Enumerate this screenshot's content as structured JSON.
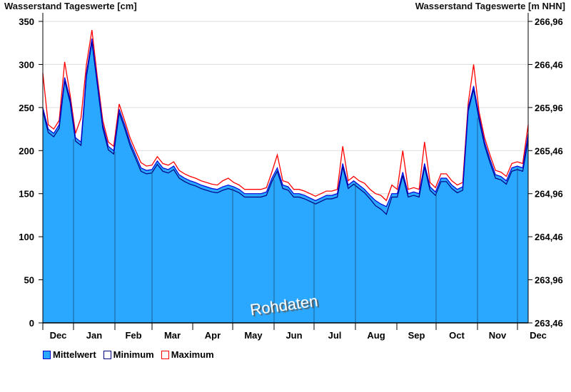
{
  "chart_data": {
    "type": "area",
    "title_left": "Wasserstand Tageswerte [cm]",
    "title_right": "Wasserstand Tageswerte [m NHN]",
    "watermark": "Rohdaten",
    "ylim": [
      0,
      350
    ],
    "yticks": [
      "0",
      "50",
      "100",
      "150",
      "200",
      "250",
      "300",
      "350"
    ],
    "yticks_right": [
      "263,46",
      "263,96",
      "264,46",
      "264,96",
      "265,46",
      "265,96",
      "266,46",
      "266,96"
    ],
    "xticks": [
      "Dec",
      "Jan",
      "Feb",
      "Mar",
      "Apr",
      "May",
      "Jun",
      "Jul",
      "Aug",
      "Sep",
      "Oct",
      "Nov",
      "Dec"
    ],
    "legend": [
      {
        "name": "Mittelwert",
        "color": "#2aa8ff",
        "border": "#0000cc"
      },
      {
        "name": "Minimum",
        "color": "#ffffff",
        "border": "#000080"
      },
      {
        "name": "Maximum",
        "color": "#ffffff",
        "border": "#ff0000"
      }
    ],
    "series": [
      {
        "name": "Mittelwert",
        "values": [
          250,
          225,
          220,
          230,
          285,
          260,
          215,
          210,
          290,
          330,
          280,
          230,
          205,
          200,
          248,
          230,
          210,
          195,
          180,
          177,
          178,
          188,
          180,
          178,
          182,
          172,
          168,
          165,
          163,
          160,
          158,
          156,
          155,
          158,
          160,
          158,
          155,
          150,
          150,
          150,
          150,
          152,
          168,
          180,
          160,
          158,
          150,
          150,
          148,
          145,
          142,
          145,
          148,
          148,
          150,
          185,
          160,
          165,
          160,
          155,
          148,
          142,
          138,
          135,
          150,
          150,
          175,
          150,
          152,
          150,
          185,
          158,
          152,
          168,
          168,
          160,
          155,
          158,
          250,
          275,
          240,
          210,
          190,
          172,
          170,
          165,
          180,
          182,
          180,
          220
        ]
      },
      {
        "name": "Minimum",
        "values": [
          246,
          221,
          216,
          226,
          281,
          256,
          211,
          206,
          286,
          326,
          276,
          226,
          201,
          196,
          244,
          226,
          206,
          191,
          176,
          173,
          174,
          184,
          176,
          174,
          178,
          168,
          164,
          161,
          159,
          156,
          154,
          152,
          151,
          154,
          156,
          154,
          151,
          146,
          146,
          146,
          146,
          148,
          164,
          176,
          156,
          154,
          146,
          146,
          144,
          141,
          138,
          141,
          144,
          144,
          146,
          181,
          156,
          161,
          156,
          151,
          144,
          136,
          132,
          126,
          146,
          146,
          171,
          146,
          148,
          146,
          181,
          154,
          148,
          164,
          164,
          156,
          151,
          154,
          246,
          271,
          236,
          206,
          186,
          168,
          166,
          161,
          176,
          178,
          176,
          212
        ]
      },
      {
        "name": "Maximum",
        "values": [
          290,
          230,
          225,
          235,
          303,
          265,
          220,
          238,
          300,
          340,
          285,
          235,
          210,
          205,
          254,
          235,
          215,
          200,
          186,
          182,
          183,
          193,
          185,
          183,
          187,
          177,
          173,
          170,
          168,
          165,
          163,
          161,
          160,
          165,
          168,
          163,
          160,
          155,
          155,
          155,
          155,
          157,
          175,
          195,
          165,
          163,
          155,
          155,
          153,
          150,
          147,
          150,
          153,
          153,
          155,
          205,
          165,
          170,
          165,
          162,
          155,
          150,
          148,
          142,
          160,
          155,
          200,
          155,
          157,
          155,
          210,
          163,
          157,
          173,
          173,
          165,
          160,
          163,
          255,
          300,
          245,
          215,
          195,
          177,
          175,
          170,
          185,
          187,
          185,
          230
        ]
      }
    ]
  }
}
